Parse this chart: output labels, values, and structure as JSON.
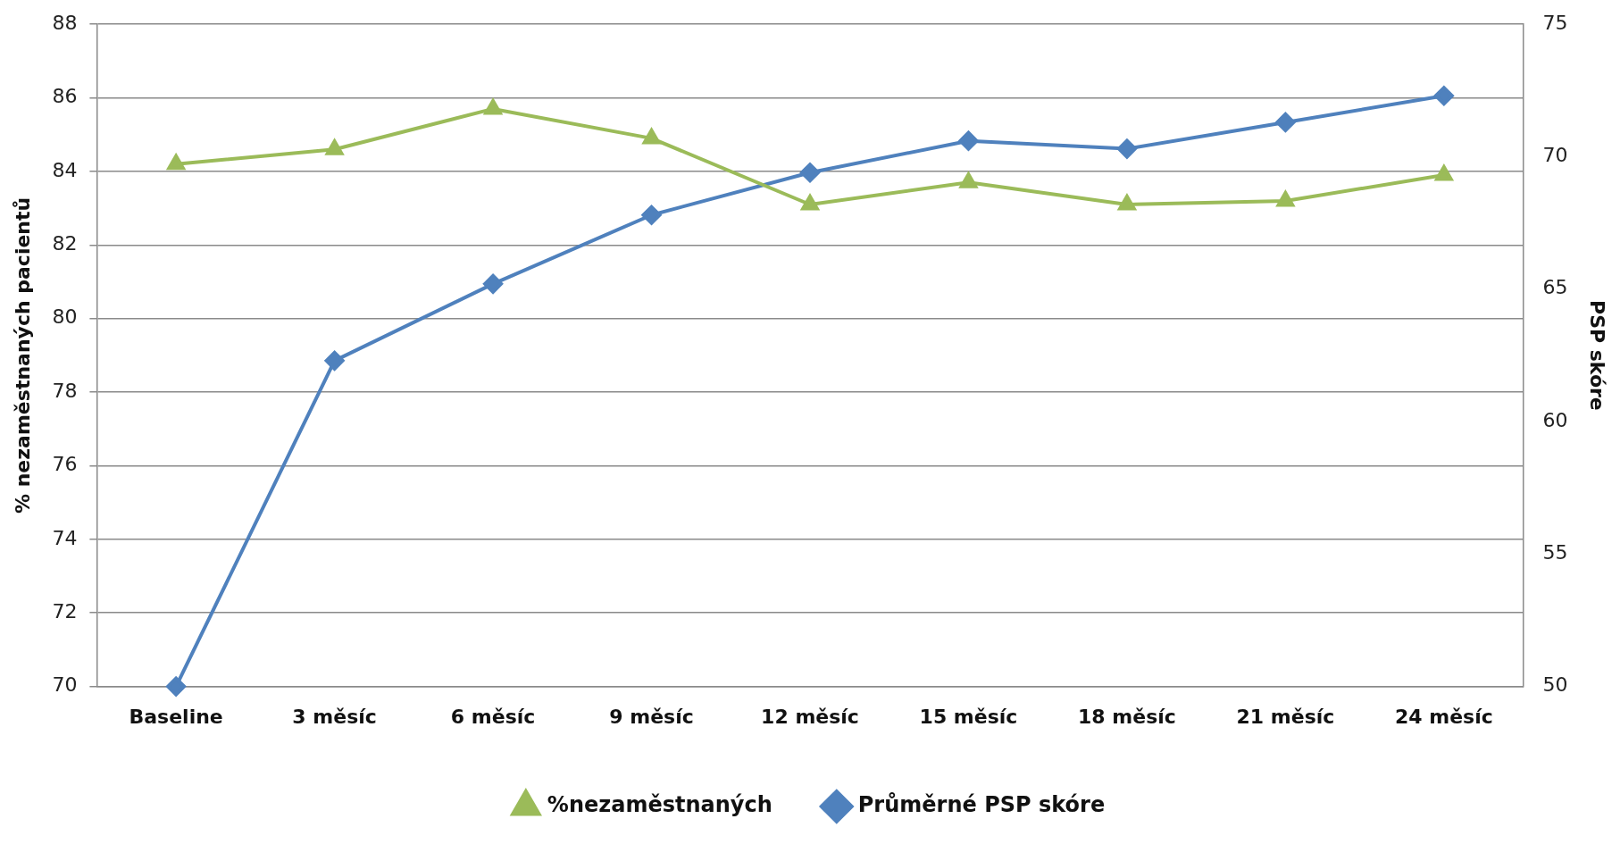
{
  "chart_data": {
    "type": "line",
    "categories": [
      "Baseline",
      "3 měsíc",
      "6 měsíc",
      "9 měsíc",
      "12 měsíc",
      "15 měsíc",
      "18 měsíc",
      "21 měsíc",
      "24 měsíc"
    ],
    "ylabel": "% nezaměstnaných pacientů",
    "y2label": "PSP skóre",
    "ylim": [
      70,
      88
    ],
    "yticks": [
      70,
      72,
      74,
      76,
      78,
      80,
      82,
      84,
      86,
      88
    ],
    "y2lim": [
      50,
      75
    ],
    "y2ticks": [
      50,
      55,
      60,
      65,
      70,
      75
    ],
    "grid": "y",
    "legend": "bottom",
    "series": [
      {
        "name": "%nezaměstnaných",
        "color": "#9bbb59",
        "marker": "triangle",
        "values": [
          84.2,
          84.6,
          85.7,
          84.9,
          83.1,
          83.7,
          83.1,
          83.2,
          83.9
        ]
      },
      {
        "name": "Průměrné PSP skóre",
        "color": "#4f81bd",
        "marker": "diamond",
        "axis": "y2",
        "values": [
          50,
          62.3,
          65.2,
          67.8,
          69.4,
          70.6,
          70.3,
          71.3,
          72.3
        ]
      }
    ]
  }
}
